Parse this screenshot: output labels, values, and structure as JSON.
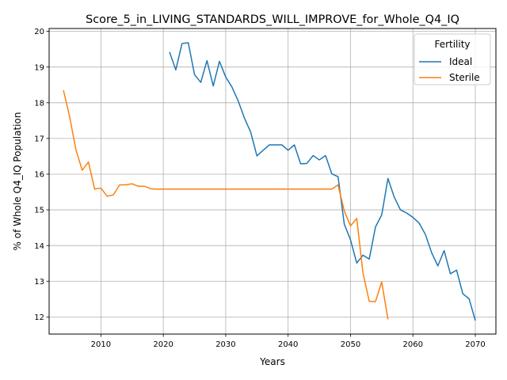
{
  "chart_data": {
    "type": "line",
    "title": "Score_5_in_LIVING_STANDARDS_WILL_IMPROVE_for_Whole_Q4_IQ",
    "xlabel": "Years",
    "ylabel": "% of Whole Q4_IQ Population",
    "xlim": [
      2001.7,
      2073.3
    ],
    "ylim": [
      11.52,
      20.08
    ],
    "xticks": [
      2010,
      2020,
      2030,
      2040,
      2050,
      2060,
      2070
    ],
    "yticks": [
      12,
      13,
      14,
      15,
      16,
      17,
      18,
      19,
      20
    ],
    "grid": true,
    "legend": {
      "title": "Fertility",
      "position": "top-right"
    },
    "series": [
      {
        "name": "Ideal",
        "color": "#1f77b4",
        "x": [
          2021,
          2022,
          2023,
          2024,
          2025,
          2026,
          2027,
          2028,
          2029,
          2030,
          2031,
          2032,
          2033,
          2034,
          2035,
          2036,
          2037,
          2038,
          2039,
          2040,
          2041,
          2042,
          2043,
          2044,
          2045,
          2046,
          2047,
          2048,
          2049,
          2050,
          2051,
          2052,
          2053,
          2054,
          2055,
          2056,
          2057,
          2058,
          2059,
          2060,
          2061,
          2062,
          2063,
          2064,
          2065,
          2066,
          2067,
          2068,
          2069,
          2070
        ],
        "y": [
          19.42,
          18.92,
          19.66,
          19.68,
          18.79,
          18.57,
          19.18,
          18.47,
          19.16,
          18.72,
          18.44,
          18.05,
          17.57,
          17.18,
          16.51,
          16.67,
          16.82,
          16.82,
          16.82,
          16.67,
          16.82,
          16.29,
          16.3,
          16.52,
          16.4,
          16.52,
          16.01,
          15.93,
          14.6,
          14.16,
          13.51,
          13.73,
          13.62,
          14.52,
          14.86,
          15.88,
          15.36,
          15.0,
          14.91,
          14.79,
          14.63,
          14.31,
          13.8,
          13.43,
          13.86,
          13.21,
          13.31,
          12.65,
          12.51,
          11.9
        ]
      },
      {
        "name": "Sterile",
        "color": "#ff7f0e",
        "x": [
          2004,
          2005,
          2006,
          2007,
          2008,
          2009,
          2010,
          2011,
          2012,
          2013,
          2014,
          2015,
          2016,
          2017,
          2018,
          2019,
          2020,
          2021,
          2022,
          2023,
          2024,
          2025,
          2026,
          2027,
          2028,
          2029,
          2030,
          2031,
          2032,
          2033,
          2034,
          2035,
          2036,
          2037,
          2038,
          2039,
          2040,
          2041,
          2042,
          2043,
          2044,
          2045,
          2046,
          2047,
          2048,
          2049,
          2050,
          2051,
          2052,
          2053,
          2054,
          2055,
          2056
        ],
        "y": [
          18.35,
          17.6,
          16.68,
          16.11,
          16.34,
          15.58,
          15.61,
          15.38,
          15.42,
          15.7,
          15.7,
          15.73,
          15.66,
          15.66,
          15.59,
          15.58,
          15.58,
          15.58,
          15.58,
          15.58,
          15.58,
          15.58,
          15.58,
          15.58,
          15.58,
          15.58,
          15.58,
          15.58,
          15.58,
          15.58,
          15.58,
          15.58,
          15.58,
          15.58,
          15.58,
          15.58,
          15.58,
          15.58,
          15.58,
          15.58,
          15.58,
          15.58,
          15.58,
          15.58,
          15.7,
          14.97,
          14.55,
          14.76,
          13.23,
          12.44,
          12.43,
          12.98,
          11.93
        ]
      }
    ]
  }
}
